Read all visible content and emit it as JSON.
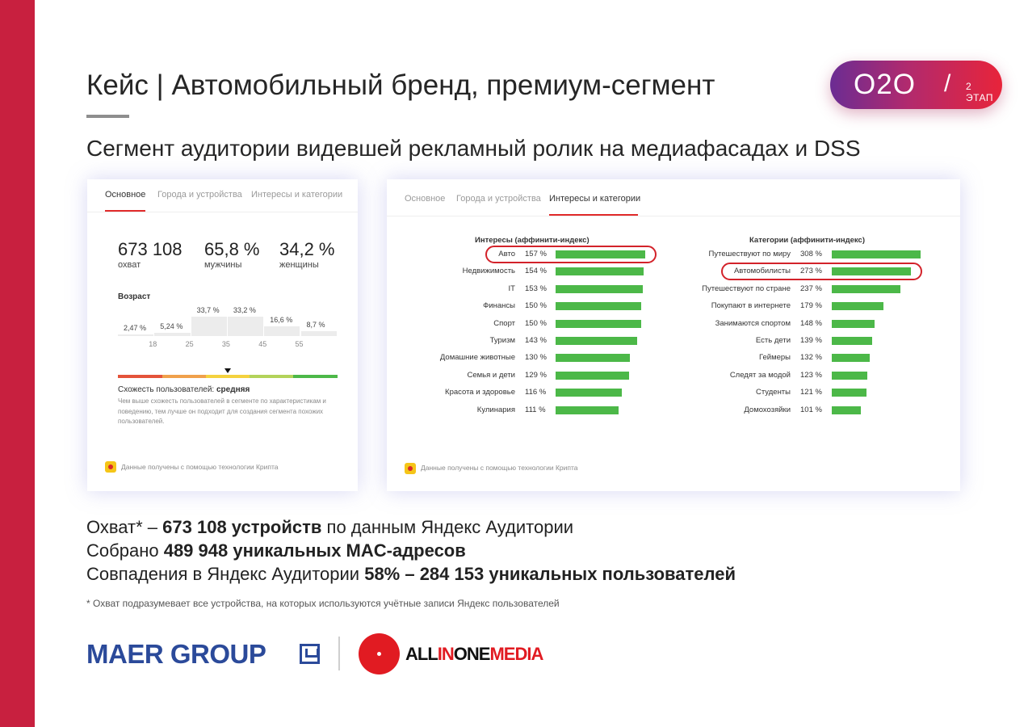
{
  "slide": {
    "title": "Кейс | Автомобильный бренд, премиум-сегмент",
    "subtitle": "Сегмент аудитории видевшей рекламный ролик на медиафасадах и DSS",
    "badge": {
      "main": "O2O",
      "slash": "/",
      "stage": "2 ЭТАП"
    },
    "accent_color": "#c8203f"
  },
  "panel1": {
    "tabs": [
      "Основное",
      "Города и устройства",
      "Интересы и категории"
    ],
    "active_tab": 0,
    "stats": [
      {
        "value": "673 108",
        "label": "охват"
      },
      {
        "value": "65,8 %",
        "label": "мужчины"
      },
      {
        "value": "34,2 %",
        "label": "женщины"
      }
    ],
    "age": {
      "heading": "Возраст",
      "bars": [
        {
          "pct": "2,47 %",
          "value": 2.47
        },
        {
          "pct": "5,24 %",
          "value": 5.24
        },
        {
          "pct": "33,7 %",
          "value": 33.7
        },
        {
          "pct": "33,2 %",
          "value": 33.2
        },
        {
          "pct": "16,6 %",
          "value": 16.6
        },
        {
          "pct": "8,7 %",
          "value": 8.7
        }
      ],
      "ticks": [
        "18",
        "25",
        "35",
        "45",
        "55"
      ]
    },
    "similarity": {
      "label": "Схожесть пользователей: ",
      "value": "средняя",
      "level": 0.5,
      "note": "Чем выше схожесть пользователей в сегменте по характеристикам и поведению, тем лучше он подходит для создания сегмента похожих пользователей."
    },
    "crypta": "Данные получены с помощью технологии Крипта"
  },
  "panel2": {
    "tabs": [
      "Основное",
      "Города и устройства",
      "Интересы и категории"
    ],
    "active_tab": 2,
    "interests": {
      "heading": "Интересы (аффинити-индекс)",
      "items": [
        {
          "label": "Авто",
          "pct": "157 %",
          "value": 157,
          "highlight": true
        },
        {
          "label": "Недвижимость",
          "pct": "154 %",
          "value": 154
        },
        {
          "label": "IT",
          "pct": "153 %",
          "value": 153
        },
        {
          "label": "Финансы",
          "pct": "150 %",
          "value": 150
        },
        {
          "label": "Спорт",
          "pct": "150 %",
          "value": 150
        },
        {
          "label": "Туризм",
          "pct": "143 %",
          "value": 143
        },
        {
          "label": "Домашние животные",
          "pct": "130 %",
          "value": 130
        },
        {
          "label": "Семья и дети",
          "pct": "129 %",
          "value": 129
        },
        {
          "label": "Красота и здоровье",
          "pct": "116 %",
          "value": 116
        },
        {
          "label": "Кулинария",
          "pct": "111 %",
          "value": 111
        }
      ]
    },
    "categories": {
      "heading": "Категории (аффинити-индекс)",
      "items": [
        {
          "label": "Путешествуют по миру",
          "pct": "308 %",
          "value": 308
        },
        {
          "label": "Автомобилисты",
          "pct": "273 %",
          "value": 273,
          "highlight": true
        },
        {
          "label": "Путешествуют по стране",
          "pct": "237 %",
          "value": 237
        },
        {
          "label": "Покупают в интернете",
          "pct": "179 %",
          "value": 179
        },
        {
          "label": "Занимаются спортом",
          "pct": "148 %",
          "value": 148
        },
        {
          "label": "Есть дети",
          "pct": "139 %",
          "value": 139
        },
        {
          "label": "Геймеры",
          "pct": "132 %",
          "value": 132
        },
        {
          "label": "Следят за модой",
          "pct": "123 %",
          "value": 123
        },
        {
          "label": "Студенты",
          "pct": "121 %",
          "value": 121
        },
        {
          "label": "Домохозяйки",
          "pct": "101 %",
          "value": 101
        }
      ]
    },
    "crypta": "Данные получены с помощью технологии Крипта",
    "bar_color": "#4cb848"
  },
  "summary": {
    "line1": {
      "a": "Охват* – ",
      "b": "673 108 устройств",
      "c": " по данным Яндекс Аудитории"
    },
    "line2": {
      "a": "Собрано ",
      "b": "489 948 уникальных MAC-адресов"
    },
    "line3": {
      "a": "Совпадения в Яндекс Аудитории ",
      "b": "58% – 284 153 уникальных пользователей"
    },
    "footnote": "* Охват подразумевает все устройства, на которых используются учётные записи Яндекс пользователей"
  },
  "logos": {
    "maer": "MAER GROUP",
    "aio": {
      "all": "ALL",
      "in": "IN",
      "one": "ONE",
      "media": "MEDIA"
    }
  }
}
